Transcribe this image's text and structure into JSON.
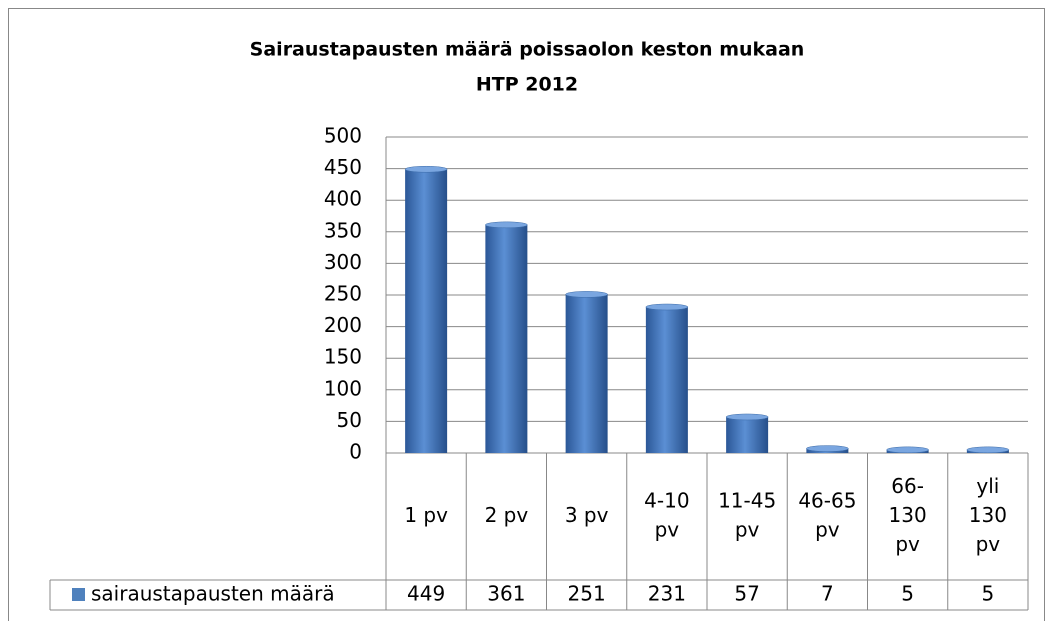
{
  "chart_data": {
    "type": "bar",
    "title": "Sairaustapausten määrä poissaolon keston mukaan",
    "subtitle": "HTP 2012",
    "categories": [
      "1 pv",
      "2 pv",
      "3 pv",
      "4-10 pv",
      "11-45 pv",
      "46-65 pv",
      "66-130 pv",
      "yli 130 pv"
    ],
    "series": [
      {
        "name": "sairaustapausten määrä",
        "color": "#4f81bd",
        "values": [
          449,
          361,
          251,
          231,
          57,
          7,
          5,
          5
        ]
      }
    ],
    "ylim": [
      0,
      500
    ],
    "yticks": [
      0,
      50,
      100,
      150,
      200,
      250,
      300,
      350,
      400,
      450,
      500
    ],
    "grid": true
  }
}
